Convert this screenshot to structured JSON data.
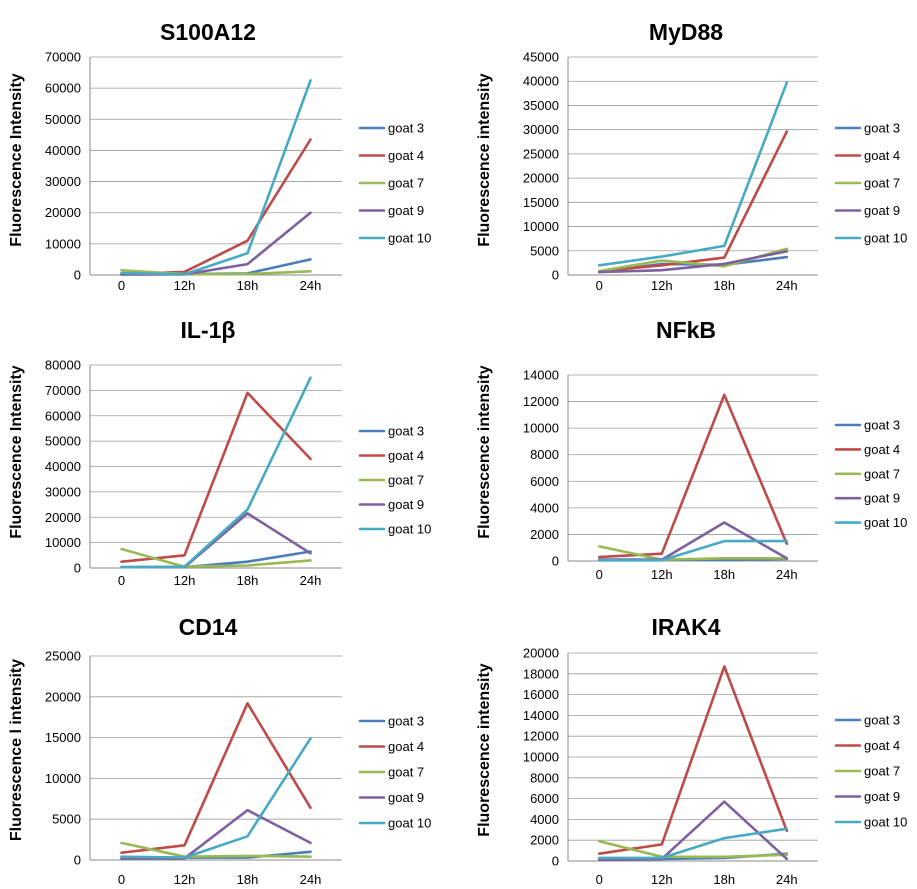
{
  "series_colors": {
    "goat 3": "#4a7ebb",
    "goat 4": "#be4b48",
    "goat 7": "#98b954",
    "goat 9": "#7d60a0",
    "goat 10": "#46aac5"
  },
  "chart_data": [
    {
      "type": "line",
      "title": "S100A12",
      "ylabel": "Fluorescence  Intensity",
      "categories": [
        "0",
        "12h",
        "18h",
        "24h"
      ],
      "ylim": [
        0,
        70000
      ],
      "yticks": [
        0,
        10000,
        20000,
        30000,
        40000,
        50000,
        60000,
        70000
      ],
      "grid": true,
      "legend": "right",
      "series": [
        {
          "name": "goat 3",
          "values": [
            200,
            300,
            500,
            5000
          ]
        },
        {
          "name": "goat 4",
          "values": [
            300,
            1000,
            11000,
            43500
          ]
        },
        {
          "name": "goat 7",
          "values": [
            1500,
            300,
            300,
            1200
          ]
        },
        {
          "name": "goat 9",
          "values": [
            200,
            200,
            3500,
            20000
          ]
        },
        {
          "name": "goat 10",
          "values": [
            600,
            200,
            7000,
            62500
          ]
        }
      ]
    },
    {
      "type": "line",
      "title": "MyD88",
      "ylabel": "Fluorescence intensity",
      "categories": [
        "0",
        "12h",
        "18h",
        "24h"
      ],
      "ylim": [
        0,
        45000
      ],
      "yticks": [
        0,
        5000,
        10000,
        15000,
        20000,
        25000,
        30000,
        35000,
        40000,
        45000
      ],
      "grid": true,
      "legend": "right",
      "series": [
        {
          "name": "goat 3",
          "values": [
            600,
            2300,
            2100,
            3700
          ]
        },
        {
          "name": "goat 4",
          "values": [
            800,
            2000,
            3600,
            29600
          ]
        },
        {
          "name": "goat 7",
          "values": [
            800,
            3000,
            1800,
            5400
          ]
        },
        {
          "name": "goat 9",
          "values": [
            600,
            1000,
            2300,
            4900
          ]
        },
        {
          "name": "goat 10",
          "values": [
            2000,
            3800,
            6000,
            39700
          ]
        }
      ]
    },
    {
      "type": "line",
      "title": "IL-1β",
      "ylabel": "Fluorescence  Intensity",
      "categories": [
        "0",
        "12h",
        "18h",
        "24h"
      ],
      "ylim": [
        0,
        80000
      ],
      "yticks": [
        0,
        10000,
        20000,
        30000,
        40000,
        50000,
        60000,
        70000,
        80000
      ],
      "grid": true,
      "legend": "right",
      "series": [
        {
          "name": "goat 3",
          "values": [
            300,
            300,
            2500,
            6500
          ]
        },
        {
          "name": "goat 4",
          "values": [
            2500,
            5000,
            69000,
            43000
          ]
        },
        {
          "name": "goat 7",
          "values": [
            7500,
            500,
            1000,
            3000
          ]
        },
        {
          "name": "goat 9",
          "values": [
            300,
            300,
            21500,
            5800
          ]
        },
        {
          "name": "goat 10",
          "values": [
            300,
            500,
            23000,
            75000
          ]
        }
      ]
    },
    {
      "type": "line",
      "title": "NFkB",
      "ylabel": "Fluorescence intensity",
      "categories": [
        "0",
        "12h",
        "18h",
        "24h"
      ],
      "ylim": [
        0,
        14000
      ],
      "yticks": [
        0,
        2000,
        4000,
        6000,
        8000,
        10000,
        12000,
        14000
      ],
      "grid": true,
      "legend": "right",
      "series": [
        {
          "name": "goat 3",
          "values": [
            100,
            100,
            100,
            150
          ]
        },
        {
          "name": "goat 4",
          "values": [
            300,
            550,
            12500,
            1300
          ]
        },
        {
          "name": "goat 7",
          "values": [
            1100,
            100,
            200,
            200
          ]
        },
        {
          "name": "goat 9",
          "values": [
            100,
            100,
            2900,
            200
          ]
        },
        {
          "name": "goat 10",
          "values": [
            50,
            50,
            1500,
            1500
          ]
        }
      ]
    },
    {
      "type": "line",
      "title": "CD14",
      "ylabel": "Fluorescence l intensity",
      "categories": [
        "0",
        "12h",
        "18h",
        "24h"
      ],
      "ylim": [
        0,
        25000
      ],
      "yticks": [
        0,
        5000,
        10000,
        15000,
        20000,
        25000
      ],
      "grid": true,
      "legend": "right",
      "series": [
        {
          "name": "goat 3",
          "values": [
            200,
            300,
            300,
            1000
          ]
        },
        {
          "name": "goat 4",
          "values": [
            900,
            1800,
            19200,
            6400
          ]
        },
        {
          "name": "goat 7",
          "values": [
            2100,
            400,
            500,
            400
          ]
        },
        {
          "name": "goat 9",
          "values": [
            200,
            200,
            6100,
            2100
          ]
        },
        {
          "name": "goat 10",
          "values": [
            400,
            300,
            2900,
            14900
          ]
        }
      ]
    },
    {
      "type": "line",
      "title": "IRAK4",
      "ylabel": "Fluorescence intensity",
      "categories": [
        "0",
        "12h",
        "18h",
        "24h"
      ],
      "ylim": [
        0,
        20000
      ],
      "yticks": [
        0,
        2000,
        4000,
        6000,
        8000,
        10000,
        12000,
        14000,
        16000,
        18000,
        20000
      ],
      "grid": true,
      "legend": "right",
      "series": [
        {
          "name": "goat 3",
          "values": [
            200,
            200,
            300,
            700
          ]
        },
        {
          "name": "goat 4",
          "values": [
            700,
            1600,
            18700,
            2900
          ]
        },
        {
          "name": "goat 7",
          "values": [
            1900,
            400,
            400,
            600
          ]
        },
        {
          "name": "goat 9",
          "values": [
            100,
            200,
            5700,
            200
          ]
        },
        {
          "name": "goat 10",
          "values": [
            300,
            300,
            2200,
            3100
          ]
        }
      ]
    }
  ]
}
